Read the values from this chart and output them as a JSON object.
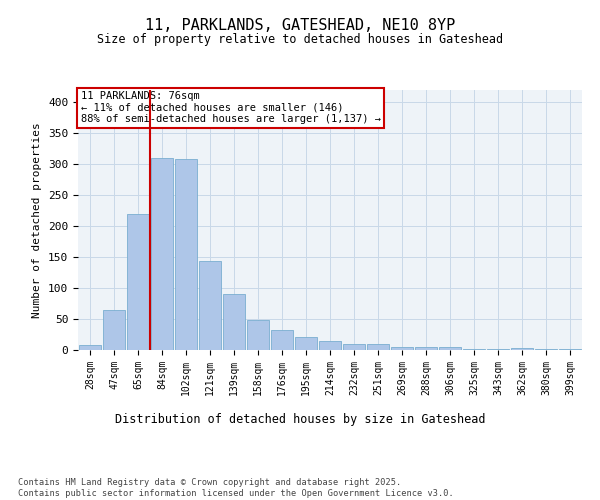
{
  "title_line1": "11, PARKLANDS, GATESHEAD, NE10 8YP",
  "title_line2": "Size of property relative to detached houses in Gateshead",
  "xlabel": "Distribution of detached houses by size in Gateshead",
  "ylabel": "Number of detached properties",
  "categories": [
    "28sqm",
    "47sqm",
    "65sqm",
    "84sqm",
    "102sqm",
    "121sqm",
    "139sqm",
    "158sqm",
    "176sqm",
    "195sqm",
    "214sqm",
    "232sqm",
    "251sqm",
    "269sqm",
    "288sqm",
    "306sqm",
    "325sqm",
    "343sqm",
    "362sqm",
    "380sqm",
    "399sqm"
  ],
  "values": [
    8,
    65,
    220,
    310,
    308,
    144,
    91,
    48,
    32,
    21,
    14,
    10,
    10,
    5,
    5,
    5,
    2,
    2,
    3,
    1,
    2
  ],
  "bar_color": "#aec6e8",
  "bar_edge_color": "#7aaed0",
  "grid_color": "#c8d8e8",
  "background_color": "#eef3f8",
  "vline_color": "#cc0000",
  "vline_x_index": 2,
  "annotation_text": "11 PARKLANDS: 76sqm\n← 11% of detached houses are smaller (146)\n88% of semi-detached houses are larger (1,137) →",
  "annotation_box_color": "#cc0000",
  "footer_text": "Contains HM Land Registry data © Crown copyright and database right 2025.\nContains public sector information licensed under the Open Government Licence v3.0.",
  "ylim": [
    0,
    420
  ],
  "yticks": [
    0,
    50,
    100,
    150,
    200,
    250,
    300,
    350,
    400
  ]
}
